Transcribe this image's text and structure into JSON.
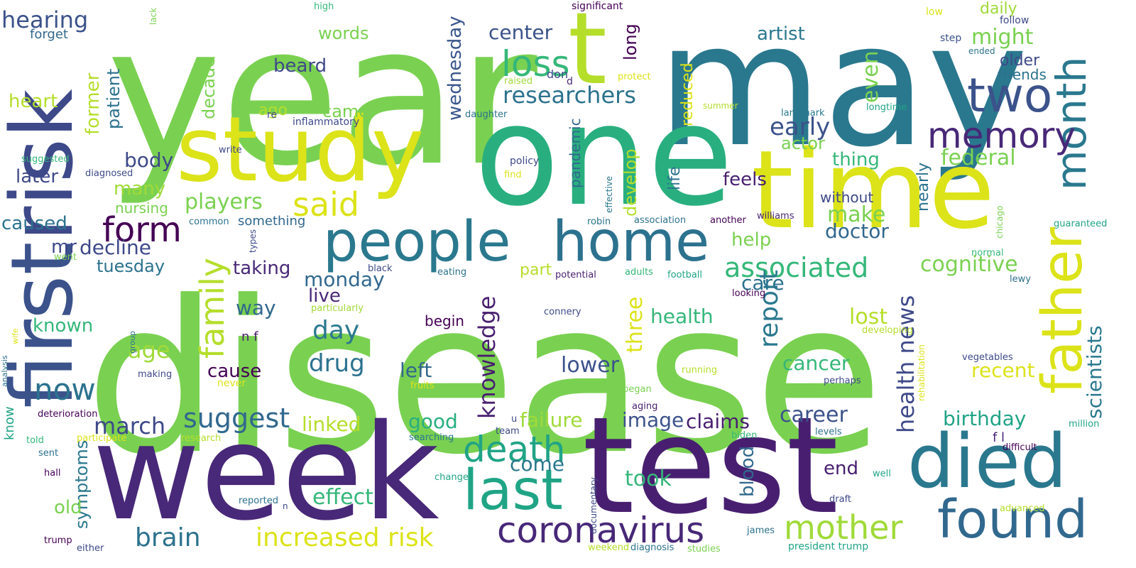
{
  "background": "#ffffff",
  "colormap": "viridis",
  "words": [
    {
      "text": "disease",
      "color": "#7ad151"
    },
    {
      "text": "year",
      "color": "#7ad151"
    },
    {
      "text": "may",
      "color": "#2a788e"
    },
    {
      "text": "one",
      "color": "#29af7f"
    },
    {
      "text": "week",
      "color": "#482878"
    },
    {
      "text": "test",
      "color": "#481f70"
    },
    {
      "text": "time",
      "color": "#dce319"
    },
    {
      "text": "study",
      "color": "#dce319"
    },
    {
      "text": "first",
      "color": "#3b528b"
    },
    {
      "text": "risk",
      "color": "#3e4989"
    },
    {
      "text": "people",
      "color": "#2a788e"
    },
    {
      "text": "home",
      "color": "#2c728e"
    },
    {
      "text": "died",
      "color": "#2a788e"
    },
    {
      "text": "found",
      "color": "#31688e"
    },
    {
      "text": "father",
      "color": "#dce319"
    },
    {
      "text": "last",
      "color": "#20a486"
    },
    {
      "text": "two",
      "color": "#3b528b"
    },
    {
      "text": "month",
      "color": "#2a788e"
    },
    {
      "text": "memory",
      "color": "#482878"
    },
    {
      "text": "t",
      "color": "#b5de2b"
    },
    {
      "text": "coronavirus",
      "color": "#482878"
    },
    {
      "text": "mother",
      "color": "#a0da39"
    },
    {
      "text": "death",
      "color": "#20a486"
    },
    {
      "text": "loss",
      "color": "#35b779"
    },
    {
      "text": "form",
      "color": "#440154"
    },
    {
      "text": "said",
      "color": "#dce319"
    },
    {
      "text": "family",
      "color": "#b5de2b"
    },
    {
      "text": "players",
      "color": "#7ad151"
    },
    {
      "text": "researchers",
      "color": "#2c728e"
    },
    {
      "text": "associated",
      "color": "#35b779"
    },
    {
      "text": "report",
      "color": "#2a788e"
    },
    {
      "text": "now",
      "color": "#2c728e"
    },
    {
      "text": "suggest",
      "color": "#31688e"
    },
    {
      "text": "increased risk",
      "color": "#dce319"
    },
    {
      "text": "brain",
      "color": "#2c728e"
    },
    {
      "text": "knowledge",
      "color": "#481f70"
    },
    {
      "text": "drug",
      "color": "#2c728e"
    },
    {
      "text": "day",
      "color": "#2a788e"
    },
    {
      "text": "hearing",
      "color": "#3b528b"
    },
    {
      "text": "early",
      "color": "#3b528b"
    },
    {
      "text": "health news",
      "color": "#3e4989"
    },
    {
      "text": "march",
      "color": "#3e4989"
    },
    {
      "text": "three",
      "color": "#dce319"
    },
    {
      "text": "cognitive",
      "color": "#7ad151"
    },
    {
      "text": "health",
      "color": "#35b779"
    },
    {
      "text": "even",
      "color": "#7ad151"
    },
    {
      "text": "might",
      "color": "#7ad151"
    },
    {
      "text": "care",
      "color": "#2c728e"
    },
    {
      "text": "make",
      "color": "#7ad151"
    },
    {
      "text": "doctor",
      "color": "#31688e"
    },
    {
      "text": "decline",
      "color": "#3e4989"
    },
    {
      "text": "monday",
      "color": "#31688e"
    },
    {
      "text": "center",
      "color": "#3b528b"
    },
    {
      "text": "wednesday",
      "color": "#39568c"
    },
    {
      "text": "failure",
      "color": "#a0da39"
    },
    {
      "text": "federal",
      "color": "#7ad151"
    },
    {
      "text": "age",
      "color": "#a0da39"
    },
    {
      "text": "lost",
      "color": "#b5de2b"
    },
    {
      "text": "scientists",
      "color": "#2a788e"
    },
    {
      "text": "lower",
      "color": "#3b528b"
    },
    {
      "text": "cancer",
      "color": "#35b779"
    },
    {
      "text": "recent",
      "color": "#dce319"
    },
    {
      "text": "career",
      "color": "#3b528b"
    },
    {
      "text": "birthday",
      "color": "#20a486"
    },
    {
      "text": "claims",
      "color": "#481f70"
    },
    {
      "text": "image",
      "color": "#3b528b"
    },
    {
      "text": "linked",
      "color": "#b5de2b"
    },
    {
      "text": "good",
      "color": "#29af7f"
    },
    {
      "text": "effect",
      "color": "#35b779"
    },
    {
      "text": "come",
      "color": "#2a788e"
    },
    {
      "text": "took",
      "color": "#35b779"
    },
    {
      "text": "end",
      "color": "#481f70"
    },
    {
      "text": "blood",
      "color": "#31688e"
    },
    {
      "text": "symptoms",
      "color": "#2a788e"
    },
    {
      "text": "old",
      "color": "#7ad151"
    },
    {
      "text": "left",
      "color": "#31688e"
    },
    {
      "text": "cause",
      "color": "#440154"
    },
    {
      "text": "body",
      "color": "#3e4989"
    },
    {
      "text": "way",
      "color": "#31688e"
    },
    {
      "text": "taking",
      "color": "#482878"
    },
    {
      "text": "live",
      "color": "#482878"
    },
    {
      "text": "known",
      "color": "#35b779"
    },
    {
      "text": "caused",
      "color": "#2c728e"
    },
    {
      "text": "later",
      "color": "#3e4989"
    },
    {
      "text": "many",
      "color": "#a0da39"
    },
    {
      "text": "nursing",
      "color": "#7ad151"
    },
    {
      "text": "tuesday",
      "color": "#2c728e"
    },
    {
      "text": "mr",
      "color": "#3e4989"
    },
    {
      "text": "heart",
      "color": "#b5de2b"
    },
    {
      "text": "forget",
      "color": "#31688e"
    },
    {
      "text": "former",
      "color": "#b5de2b"
    },
    {
      "text": "patient",
      "color": "#2c728e"
    },
    {
      "text": "decade",
      "color": "#7ad151"
    },
    {
      "text": "ago",
      "color": "#b5de2b"
    },
    {
      "text": "came",
      "color": "#7ad151"
    },
    {
      "text": "words",
      "color": "#7ad151"
    },
    {
      "text": "beard",
      "color": "#3e4989"
    },
    {
      "text": "long",
      "color": "#440154"
    },
    {
      "text": "artist",
      "color": "#2a788e"
    },
    {
      "text": "actor",
      "color": "#7ad151"
    },
    {
      "text": "thing",
      "color": "#35b779"
    },
    {
      "text": "feels",
      "color": "#481f70"
    },
    {
      "text": "develop",
      "color": "#b5de2b"
    },
    {
      "text": "life",
      "color": "#2c728e"
    },
    {
      "text": "reduced",
      "color": "#dce319"
    },
    {
      "text": "pandemic",
      "color": "#31688e"
    },
    {
      "text": "nearly",
      "color": "#2c728e"
    },
    {
      "text": "without",
      "color": "#3e4989"
    },
    {
      "text": "help",
      "color": "#7ad151"
    },
    {
      "text": "part",
      "color": "#b5de2b"
    },
    {
      "text": "begin",
      "color": "#440154"
    },
    {
      "text": "daily",
      "color": "#a0da39"
    },
    {
      "text": "older",
      "color": "#3e4989"
    },
    {
      "text": "friends",
      "color": "#2c728e"
    },
    {
      "text": "something",
      "color": "#31688e"
    },
    {
      "text": "n f",
      "color": "#481f70"
    },
    {
      "text": "high",
      "color": "#35b779"
    },
    {
      "text": "lack",
      "color": "#7ad151"
    },
    {
      "text": "significant",
      "color": "#440154"
    },
    {
      "text": "don",
      "color": "#3e4989"
    },
    {
      "text": "low",
      "color": "#dce319"
    },
    {
      "text": "follow",
      "color": "#3e4989"
    },
    {
      "text": "step",
      "color": "#3b528b"
    },
    {
      "text": "ended",
      "color": "#2c728e"
    },
    {
      "text": "raised",
      "color": "#a0da39"
    },
    {
      "text": "d",
      "color": "#482878"
    },
    {
      "text": "protect",
      "color": "#dce319"
    },
    {
      "text": "re",
      "color": "#3e4989"
    },
    {
      "text": "inflammatory",
      "color": "#3e4989"
    },
    {
      "text": "daughter",
      "color": "#2c728e"
    },
    {
      "text": "summer",
      "color": "#b5de2b"
    },
    {
      "text": "landmark",
      "color": "#2a788e"
    },
    {
      "text": "longtime",
      "color": "#20a486"
    },
    {
      "text": "suggested",
      "color": "#35b779"
    },
    {
      "text": "write",
      "color": "#3e4989"
    },
    {
      "text": "diagnosed",
      "color": "#3e4989"
    },
    {
      "text": "policy",
      "color": "#3e4989"
    },
    {
      "text": "find",
      "color": "#dce319"
    },
    {
      "text": "effective",
      "color": "#2a788e"
    },
    {
      "text": "association",
      "color": "#2c728e"
    },
    {
      "text": "another",
      "color": "#440154"
    },
    {
      "text": "williams",
      "color": "#482878"
    },
    {
      "text": "chicago",
      "color": "#7ad151"
    },
    {
      "text": "guaranteed",
      "color": "#20a486"
    },
    {
      "text": "common",
      "color": "#2c728e"
    },
    {
      "text": "robin",
      "color": "#2c728e"
    },
    {
      "text": "types",
      "color": "#3e4989"
    },
    {
      "text": "normal",
      "color": "#35b779"
    },
    {
      "text": "went",
      "color": "#7ad151"
    },
    {
      "text": "black",
      "color": "#3e4989"
    },
    {
      "text": "eating",
      "color": "#2c728e"
    },
    {
      "text": "potential",
      "color": "#481f70"
    },
    {
      "text": "adults",
      "color": "#35b779"
    },
    {
      "text": "football",
      "color": "#20a486"
    },
    {
      "text": "looking",
      "color": "#440154"
    },
    {
      "text": "lewy",
      "color": "#2c728e"
    },
    {
      "text": "particularly",
      "color": "#a0da39"
    },
    {
      "text": "connery",
      "color": "#3e4989"
    },
    {
      "text": "wife",
      "color": "#dce319"
    },
    {
      "text": "group",
      "color": "#2c728e"
    },
    {
      "text": "analysis",
      "color": "#2c728e"
    },
    {
      "text": "developing",
      "color": "#b5de2b"
    },
    {
      "text": "rehabilitation",
      "color": "#dce319"
    },
    {
      "text": "vegetables",
      "color": "#3e4989"
    },
    {
      "text": "making",
      "color": "#3e4989"
    },
    {
      "text": "running",
      "color": "#b5de2b"
    },
    {
      "text": "perhaps",
      "color": "#3e4989"
    },
    {
      "text": "never",
      "color": "#dce319"
    },
    {
      "text": "fruits",
      "color": "#dce319"
    },
    {
      "text": "began",
      "color": "#7ad151"
    },
    {
      "text": "aging",
      "color": "#481f70"
    },
    {
      "text": "deterioration",
      "color": "#440154"
    },
    {
      "text": "know",
      "color": "#20a486"
    },
    {
      "text": "u",
      "color": "#3e4989"
    },
    {
      "text": "team",
      "color": "#3e4989"
    },
    {
      "text": "searching",
      "color": "#2a788e"
    },
    {
      "text": "biden",
      "color": "#35b779"
    },
    {
      "text": "levels",
      "color": "#2c728e"
    },
    {
      "text": "f l",
      "color": "#482878"
    },
    {
      "text": "million",
      "color": "#20a486"
    },
    {
      "text": "difficult",
      "color": "#440154"
    },
    {
      "text": "told",
      "color": "#35b779"
    },
    {
      "text": "participate",
      "color": "#dce319"
    },
    {
      "text": "research",
      "color": "#b5de2b"
    },
    {
      "text": "sent",
      "color": "#2c728e"
    },
    {
      "text": "change",
      "color": "#20a486"
    },
    {
      "text": "well",
      "color": "#20a486"
    },
    {
      "text": "hall",
      "color": "#440154"
    },
    {
      "text": "documentary",
      "color": "#3e4989"
    },
    {
      "text": "reported",
      "color": "#2c728e"
    },
    {
      "text": "n",
      "color": "#3e4989"
    },
    {
      "text": "draft",
      "color": "#3e4989"
    },
    {
      "text": "advanced",
      "color": "#b5de2b"
    },
    {
      "text": "james",
      "color": "#2c728e"
    },
    {
      "text": "trump",
      "color": "#440154"
    },
    {
      "text": "either",
      "color": "#3e4989"
    },
    {
      "text": "weekend",
      "color": "#b5de2b"
    },
    {
      "text": "diagnosis",
      "color": "#2c728e"
    },
    {
      "text": "studies",
      "color": "#7ad151"
    },
    {
      "text": "president trump",
      "color": "#20a486"
    }
  ]
}
